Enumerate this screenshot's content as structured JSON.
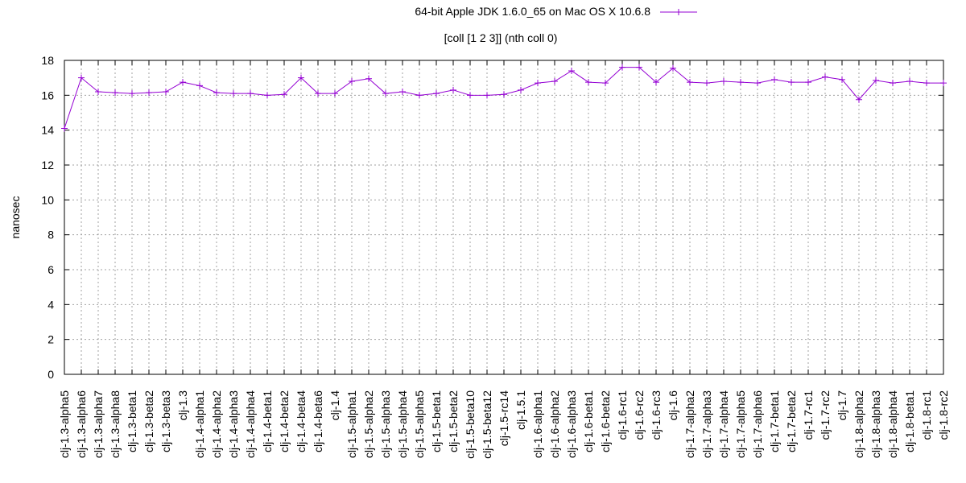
{
  "chart_data": {
    "type": "line",
    "title": "[coll [1 2 3]] (nth coll 0)",
    "ylabel": "nanosec",
    "xlabel": "",
    "ylim": [
      0,
      18
    ],
    "yticks": [
      0,
      2,
      4,
      6,
      8,
      10,
      12,
      14,
      16,
      18
    ],
    "grid": true,
    "legend_position": "top",
    "categories": [
      "clj-1.3-alpha5",
      "clj-1.3-alpha6",
      "clj-1.3-alpha7",
      "clj-1.3-alpha8",
      "clj-1.3-beta1",
      "clj-1.3-beta2",
      "clj-1.3-beta3",
      "clj-1.3",
      "clj-1.4-alpha1",
      "clj-1.4-alpha2",
      "clj-1.4-alpha3",
      "clj-1.4-alpha4",
      "clj-1.4-beta1",
      "clj-1.4-beta2",
      "clj-1.4-beta4",
      "clj-1.4-beta6",
      "clj-1.4",
      "clj-1.5-alpha1",
      "clj-1.5-alpha2",
      "clj-1.5-alpha3",
      "clj-1.5-alpha4",
      "clj-1.5-alpha5",
      "clj-1.5-beta1",
      "clj-1.5-beta2",
      "clj-1.5-beta10",
      "clj-1.5-beta12",
      "clj-1.5-rc14",
      "clj-1.5.1",
      "clj-1.6-alpha1",
      "clj-1.6-alpha2",
      "clj-1.6-alpha3",
      "clj-1.6-beta1",
      "clj-1.6-beta2",
      "clj-1.6-rc1",
      "clj-1.6-rc2",
      "clj-1.6-rc3",
      "clj-1.6",
      "clj-1.7-alpha2",
      "clj-1.7-alpha3",
      "clj-1.7-alpha4",
      "clj-1.7-alpha5",
      "clj-1.7-alpha6",
      "clj-1.7-beta1",
      "clj-1.7-beta2",
      "clj-1.7-rc1",
      "clj-1.7-rc2",
      "clj-1.7",
      "clj-1.8-alpha2",
      "clj-1.8-alpha3",
      "clj-1.8-alpha4",
      "clj-1.8-beta1",
      "clj-1.8-rc1",
      "clj-1.8-rc2"
    ],
    "series": [
      {
        "name": "64-bit Apple JDK 1.6.0_65 on Mac OS X 10.6.8",
        "color": "#9400d3",
        "values": [
          14.1,
          17.0,
          16.2,
          16.15,
          16.1,
          16.15,
          16.2,
          16.75,
          16.55,
          16.15,
          16.1,
          16.1,
          16.0,
          16.05,
          17.0,
          16.1,
          16.1,
          16.8,
          16.95,
          16.1,
          16.2,
          16.0,
          16.1,
          16.3,
          16.0,
          16.0,
          16.05,
          16.3,
          16.7,
          16.8,
          17.4,
          16.75,
          16.7,
          17.6,
          17.6,
          16.75,
          17.55,
          16.75,
          16.7,
          16.8,
          16.75,
          16.7,
          16.9,
          16.75,
          16.75,
          17.05,
          16.9,
          15.75,
          16.85,
          16.7,
          16.8,
          16.7,
          16.7
        ]
      }
    ]
  }
}
